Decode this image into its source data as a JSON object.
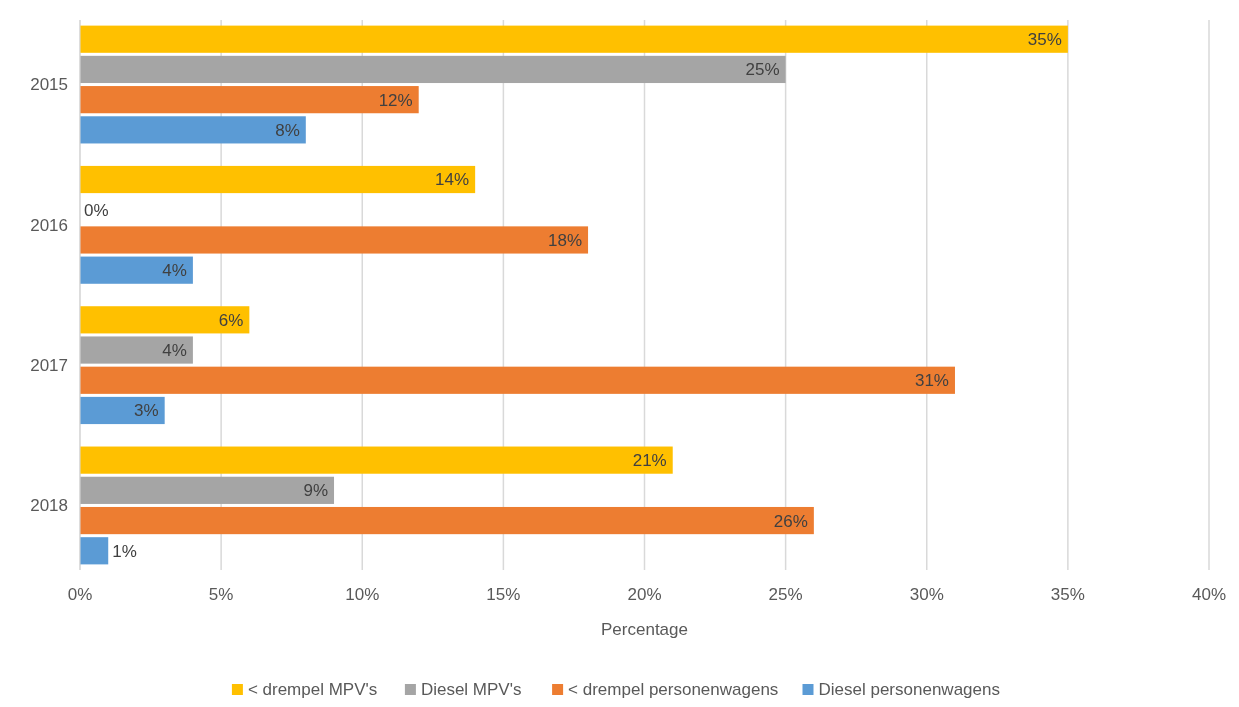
{
  "chart_data": {
    "type": "bar",
    "orientation": "horizontal",
    "categories": [
      "2015",
      "2016",
      "2017",
      "2018"
    ],
    "series": [
      {
        "name": "< drempel MPV's",
        "color": "#ffc000",
        "values": [
          35,
          14,
          6,
          21
        ],
        "value_labels": [
          "35%",
          "14%",
          "6%",
          "21%"
        ]
      },
      {
        "name": "Diesel MPV's",
        "color": "#a5a5a5",
        "values": [
          25,
          0,
          4,
          9
        ],
        "value_labels": [
          "25%",
          "0%",
          "4%",
          "9%"
        ]
      },
      {
        "name": "< drempel personenwagens",
        "color": "#ed7d31",
        "values": [
          12,
          18,
          31,
          26
        ],
        "value_labels": [
          "12%",
          "18%",
          "31%",
          "26%"
        ]
      },
      {
        "name": "Diesel personenwagens",
        "color": "#5b9bd5",
        "values": [
          8,
          4,
          3,
          1
        ],
        "value_labels": [
          "8%",
          "4%",
          "3%",
          "1%"
        ]
      }
    ],
    "xlim": [
      0,
      40
    ],
    "xticks": [
      {
        "value": 0,
        "label": "0%"
      },
      {
        "value": 5,
        "label": "5%"
      },
      {
        "value": 10,
        "label": "10%"
      },
      {
        "value": 15,
        "label": "15%"
      },
      {
        "value": 20,
        "label": "20%"
      },
      {
        "value": 25,
        "label": "25%"
      },
      {
        "value": 30,
        "label": "30%"
      },
      {
        "value": 35,
        "label": "35%"
      },
      {
        "value": 40,
        "label": "40%"
      }
    ],
    "xlabel": "Percentage",
    "grid": "x",
    "legend": "bottom"
  }
}
